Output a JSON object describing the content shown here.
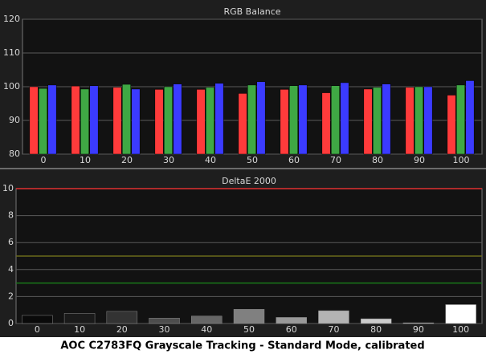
{
  "chart_data": [
    {
      "type": "bar",
      "title": "RGB Balance",
      "categories": [
        "0",
        "10",
        "20",
        "30",
        "40",
        "50",
        "60",
        "70",
        "80",
        "90",
        "100"
      ],
      "series": [
        {
          "color": "#ff3b3b",
          "values": [
            100,
            100.2,
            99.8,
            99.2,
            99.2,
            98,
            99.2,
            98.2,
            99.3,
            99.8,
            97.5
          ]
        },
        {
          "color": "#3fa844",
          "values": [
            99.5,
            99.3,
            100.7,
            100,
            99.8,
            100.5,
            100.3,
            100.3,
            99.8,
            100,
            100.5
          ]
        },
        {
          "color": "#3b3bff",
          "values": [
            100.5,
            100.3,
            99.3,
            100.8,
            101,
            101.5,
            100.5,
            101.2,
            100.8,
            100,
            101.8
          ]
        }
      ],
      "ylim": [
        80,
        120
      ],
      "yticks": [
        80,
        90,
        100,
        110,
        120
      ],
      "grid": true
    },
    {
      "type": "bar",
      "title": "DeltaE 2000",
      "categories": [
        "0",
        "10",
        "20",
        "30",
        "40",
        "50",
        "60",
        "70",
        "80",
        "90",
        "100"
      ],
      "values": [
        0.6,
        0.75,
        0.9,
        0.4,
        0.55,
        1.05,
        0.45,
        0.95,
        0.35,
        0.05,
        1.4
      ],
      "colors": [
        "#0a0a0a",
        "#1a1a1a",
        "#333333",
        "#4d4d4d",
        "#666666",
        "#808080",
        "#999999",
        "#b3b3b3",
        "#cccccc",
        "#e6e6e6",
        "#ffffff"
      ],
      "ylim": [
        0,
        10
      ],
      "yticks": [
        0,
        2,
        4,
        6,
        8,
        10
      ],
      "grid": true,
      "reference_lines": [
        {
          "value": 10,
          "color": "#e03030"
        },
        {
          "value": 5,
          "color": "#6b6b1a"
        },
        {
          "value": 3,
          "color": "#1a7a1a"
        }
      ]
    }
  ],
  "caption": "AOC C2783FQ Grayscale Tracking - Standard Mode, calibrated"
}
